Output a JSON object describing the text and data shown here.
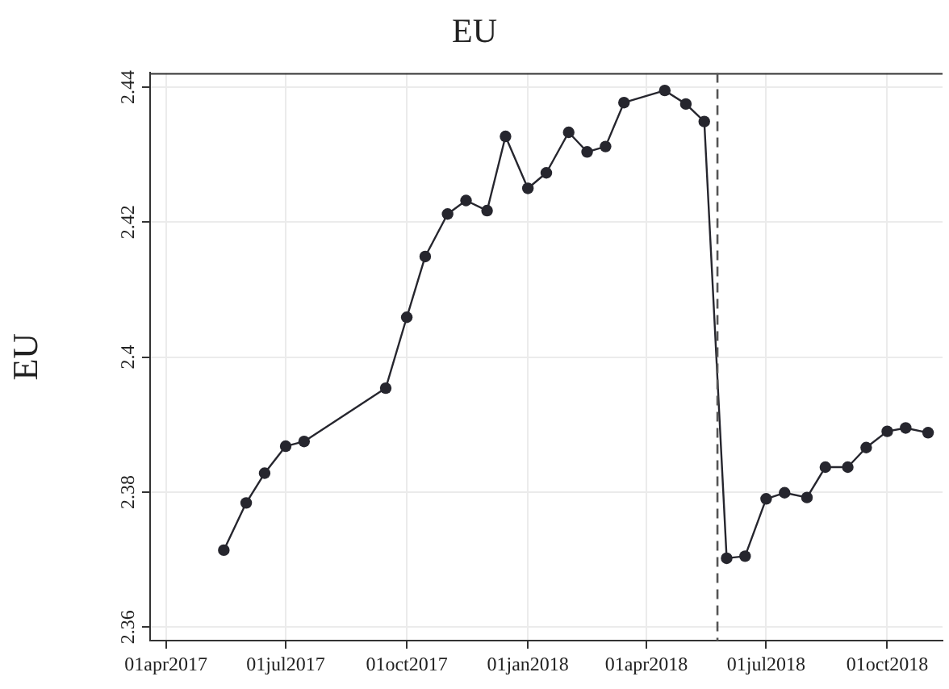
{
  "chart_data": {
    "type": "line",
    "title": "EU",
    "ylabel": "EU",
    "x": [
      "2017-05-15",
      "2017-06-01",
      "2017-06-15",
      "2017-07-01",
      "2017-07-15",
      "2017-09-15",
      "2017-10-01",
      "2017-10-15",
      "2017-11-01",
      "2017-11-15",
      "2017-12-01",
      "2017-12-15",
      "2018-01-01",
      "2018-01-15",
      "2018-02-01",
      "2018-02-15",
      "2018-03-01",
      "2018-03-15",
      "2018-04-15",
      "2018-05-01",
      "2018-05-15",
      "2018-06-01",
      "2018-06-15",
      "2018-07-01",
      "2018-07-15",
      "2018-08-01",
      "2018-08-15",
      "2018-09-01",
      "2018-09-15",
      "2018-10-01",
      "2018-10-15",
      "2018-11-01"
    ],
    "series": [
      {
        "color": "#26262e",
        "values": [
          2.3714,
          2.3784,
          2.3828,
          2.3868,
          2.3875,
          2.3954,
          2.4059,
          2.4149,
          2.4212,
          2.4232,
          2.4217,
          2.4327,
          2.425,
          2.4273,
          2.4333,
          2.4304,
          2.4312,
          2.4377,
          2.4395,
          2.4375,
          2.4349,
          2.3702,
          2.3705,
          2.379,
          2.3799,
          2.3792,
          2.3837,
          2.3837,
          2.3866,
          2.389,
          2.3895,
          2.3888
        ]
      }
    ],
    "xlim": [
      "2017-03-20",
      "2018-11-12"
    ],
    "xticks": [
      {
        "value": "2017-04-01",
        "label": "01apr2017"
      },
      {
        "value": "2017-07-01",
        "label": "01jul2017"
      },
      {
        "value": "2017-10-01",
        "label": "01oct2017"
      },
      {
        "value": "2018-01-01",
        "label": "01jan2018"
      },
      {
        "value": "2018-04-01",
        "label": "01apr2018"
      },
      {
        "value": "2018-07-01",
        "label": "01jul2018"
      },
      {
        "value": "2018-10-01",
        "label": "01oct2018"
      }
    ],
    "ylim": [
      2.358,
      2.4421
    ],
    "yticks": [
      2.36,
      2.38,
      {
        "value": 2.4,
        "label": "2.4"
      },
      2.42,
      2.44
    ],
    "ref_lines": [
      {
        "axis": "x",
        "value": "2018-05-25",
        "color": "#555555",
        "line_style": "dashed"
      }
    ],
    "grid": true,
    "legend": false,
    "marker": "circle",
    "line_style": "solid"
  }
}
